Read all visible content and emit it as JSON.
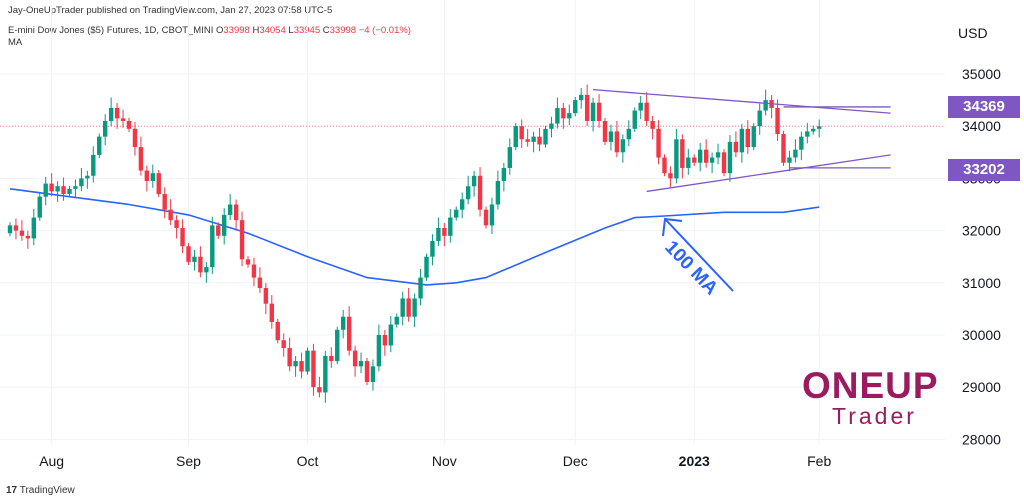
{
  "header": {
    "published": "Jay-OneUpTrader published on TradingView.com, Jan 27, 2023 07:58 UTC-5",
    "symbol": "E-mini Dow Jones ($5) Futures, 1D, CBOT_MINI",
    "ohlc_o_label": "O",
    "ohlc_o": "33998",
    "ohlc_h_label": "H",
    "ohlc_h": "34054",
    "ohlc_l_label": "L",
    "ohlc_l": "33945",
    "ohlc_c_label": "C",
    "ohlc_c": "33998",
    "change": "−4 (−0.01%)",
    "indicator": "MA"
  },
  "currency": "USD",
  "price_boxes": {
    "upper": "34369",
    "lower": "33202"
  },
  "annotation": "100 MA",
  "watermark": {
    "one": "ONEUP",
    "trader": "Trader"
  },
  "footer": "TradingView",
  "colors": {
    "up": "#089981",
    "down": "#f23645",
    "ma": "#2962ff",
    "trend": "#7e57c2",
    "brand": "#9b1c5e"
  },
  "chart_data": {
    "type": "candlestick",
    "title": "E-mini Dow Jones ($5) Futures, 1D, CBOT_MINI",
    "ylim": [
      28000,
      35900
    ],
    "y_ticks": [
      28000,
      29000,
      30000,
      31000,
      32000,
      33000,
      34000,
      35000
    ],
    "y_tick_labels": [
      "28000",
      "29000",
      "30000",
      "31000",
      "32000",
      "33000",
      "34000",
      "35000"
    ],
    "x_ticks": [
      {
        "label": "Aug",
        "bar": 7,
        "bold": false
      },
      {
        "label": "Sep",
        "bar": 30,
        "bold": false
      },
      {
        "label": "Oct",
        "bar": 50,
        "bold": false
      },
      {
        "label": "Nov",
        "bar": 73,
        "bold": false
      },
      {
        "label": "Dec",
        "bar": 95,
        "bold": false
      },
      {
        "label": "2023",
        "bar": 115,
        "bold": true
      },
      {
        "label": "Feb",
        "bar": 136,
        "bold": false
      }
    ],
    "closes": [
      32100,
      32000,
      31900,
      31850,
      32250,
      32650,
      32900,
      32750,
      32850,
      32700,
      32800,
      32850,
      33000,
      33050,
      33450,
      33800,
      34100,
      34350,
      34150,
      34100,
      33950,
      33600,
      33150,
      32950,
      33100,
      32700,
      32400,
      32200,
      32050,
      31700,
      31400,
      31500,
      31200,
      31300,
      32100,
      31900,
      32300,
      32500,
      32200,
      31450,
      31350,
      31100,
      30900,
      30600,
      30250,
      29900,
      29750,
      29400,
      29500,
      29300,
      29700,
      29000,
      28900,
      29600,
      29500,
      30100,
      30350,
      29700,
      29400,
      29500,
      29100,
      29400,
      30000,
      29800,
      30200,
      30350,
      30700,
      30350,
      30700,
      31100,
      31500,
      31800,
      32050,
      31900,
      32250,
      32400,
      32600,
      32850,
      33050,
      32400,
      32100,
      32500,
      32950,
      33200,
      33600,
      34000,
      33750,
      33700,
      33800,
      33650,
      33950,
      34050,
      34350,
      34150,
      34250,
      34500,
      34600,
      34100,
      34450,
      34100,
      33700,
      33900,
      33500,
      33750,
      33950,
      34300,
      34450,
      34100,
      33950,
      33400,
      33100,
      33000,
      33750,
      33200,
      33400,
      33300,
      33550,
      33300,
      33400,
      33500,
      33100,
      33700,
      33500,
      33950,
      33600,
      34000,
      34300,
      34500,
      34350,
      33850,
      33300,
      33400,
      33550,
      33800,
      33900,
      33950,
      33998
    ],
    "opens_first": 31950,
    "ma": {
      "name": "MA 100",
      "bars": [
        0,
        10,
        20,
        30,
        40,
        50,
        60,
        70,
        75,
        80,
        90,
        100,
        105,
        110,
        120,
        130,
        136
      ],
      "values": [
        32800,
        32650,
        32500,
        32300,
        31950,
        31500,
        31100,
        30960,
        31000,
        31100,
        31580,
        32050,
        32250,
        32280,
        32350,
        32350,
        32450
      ]
    },
    "trendlines": [
      {
        "from_bar": 98,
        "from_y": 34700,
        "to_bar": 148,
        "to_y": 34250
      },
      {
        "from_bar": 107,
        "from_y": 32750,
        "to_bar": 148,
        "to_y": 33450
      },
      {
        "from_bar": 130,
        "from_y": 34369,
        "to_bar": 148,
        "to_y": 34369
      },
      {
        "from_bar": 131,
        "from_y": 33202,
        "to_bar": 148,
        "to_y": 33202
      }
    ],
    "reference_line": 33998
  }
}
